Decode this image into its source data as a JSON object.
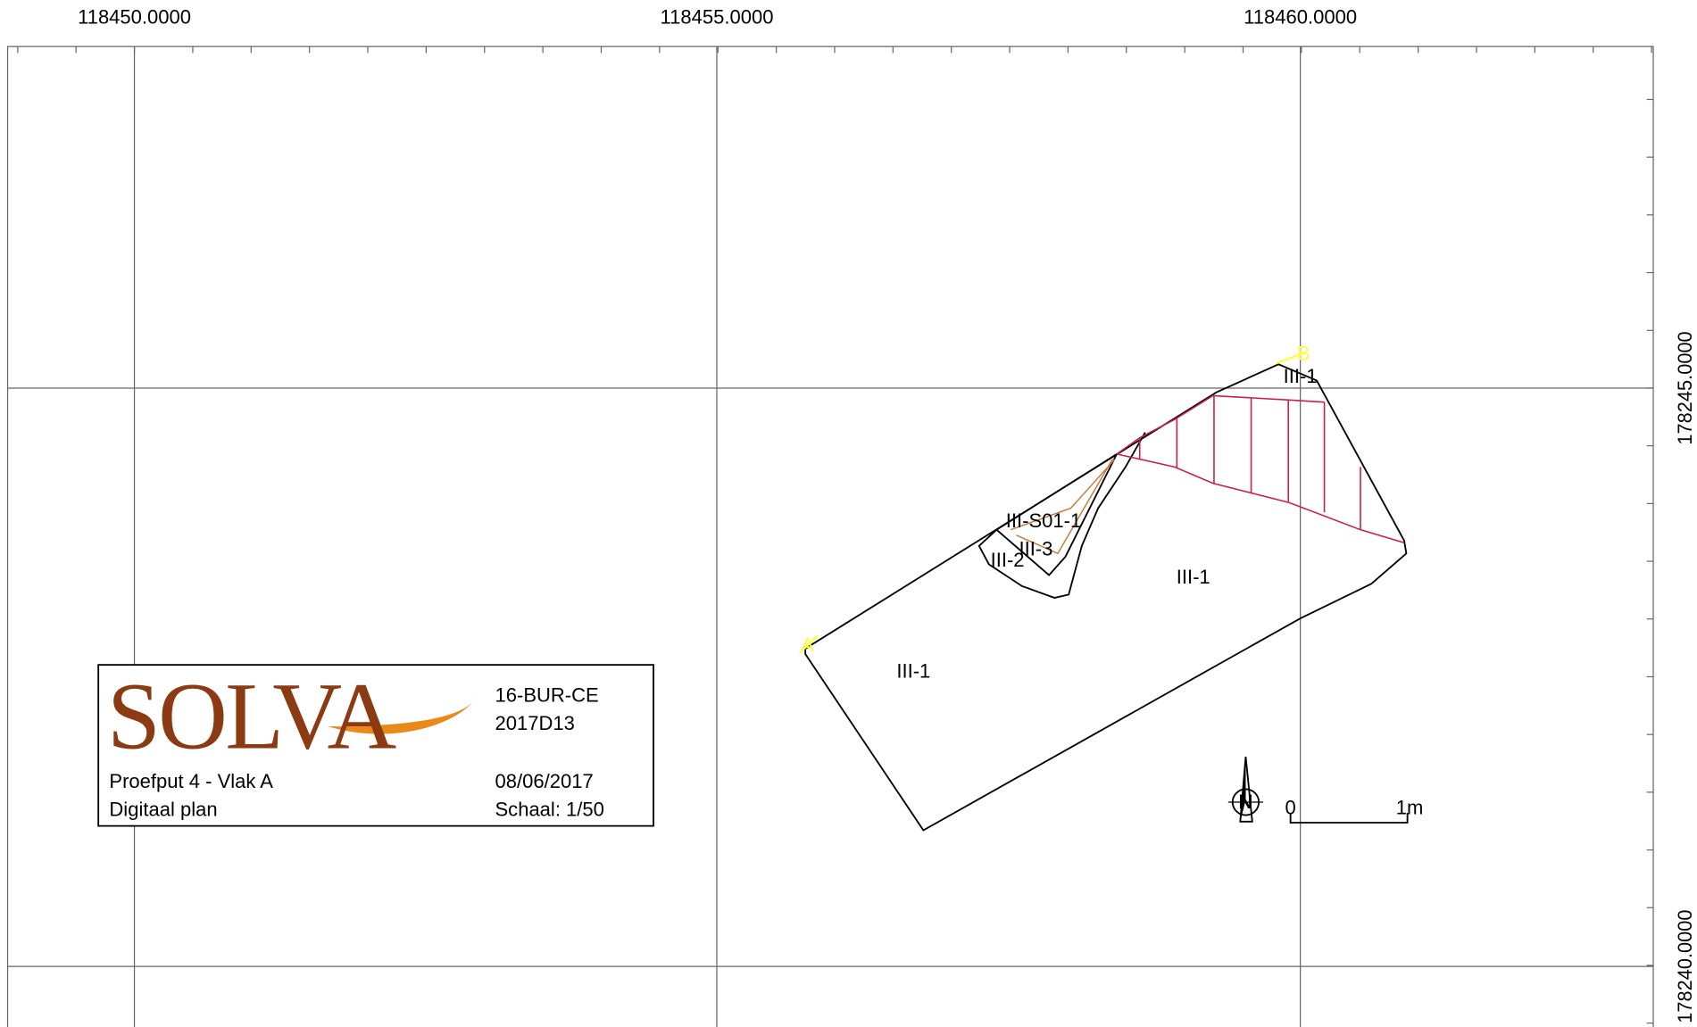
{
  "grid": {
    "x_labels": [
      "118450.0000",
      "118455.0000",
      "118460.0000"
    ],
    "y_labels": [
      "178245.0000",
      "178240.0000"
    ]
  },
  "title_block": {
    "logo": "SOLVA",
    "project": "16-BUR-CE",
    "code": "2017D13",
    "plan": "Proefput 4 - Vlak A",
    "type": "Digitaal plan",
    "date": "08/06/2017",
    "scale": "Schaal: 1/50"
  },
  "features": [
    "III-1",
    "III-1",
    "III-1",
    "III-S01-1",
    "III-3",
    "III-2"
  ],
  "points": [
    "A",
    "B"
  ],
  "north": "N",
  "scalebar": [
    "0",
    "1m"
  ]
}
